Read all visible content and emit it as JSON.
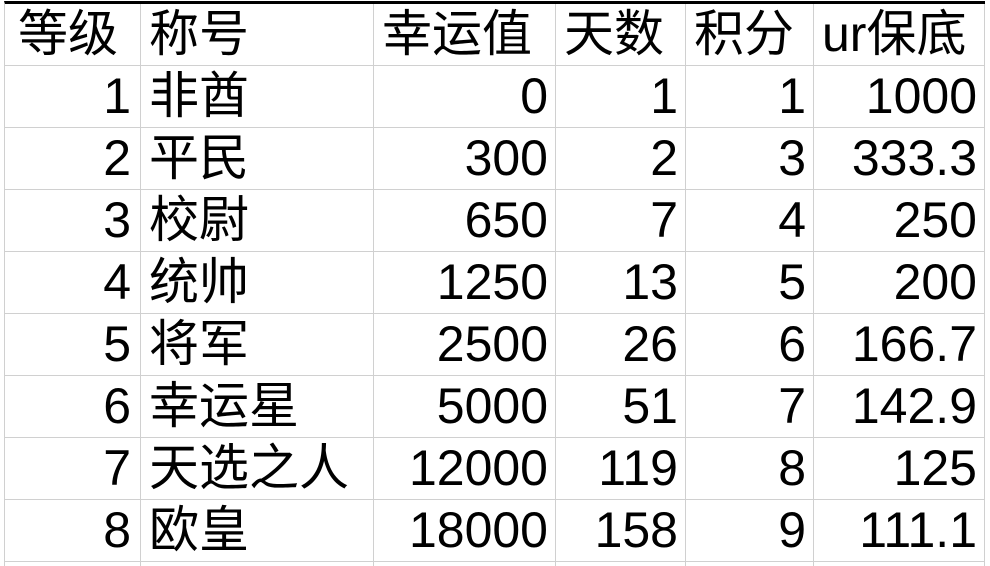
{
  "table": {
    "columns": [
      "等级",
      "称号",
      "幸运值",
      "天数",
      "积分",
      "ur保底"
    ],
    "rows": [
      [
        "1",
        "非酋",
        "0",
        "1",
        "1",
        "1000"
      ],
      [
        "2",
        "平民",
        "300",
        "2",
        "3",
        "333.3"
      ],
      [
        "3",
        "校尉",
        "650",
        "7",
        "4",
        "250"
      ],
      [
        "4",
        "统帅",
        "1250",
        "13",
        "5",
        "200"
      ],
      [
        "5",
        "将军",
        "2500",
        "26",
        "6",
        "166.7"
      ],
      [
        "6",
        "幸运星",
        "5000",
        "51",
        "7",
        "142.9"
      ],
      [
        "7",
        "天选之人",
        "12000",
        "119",
        "8",
        "125"
      ],
      [
        "8",
        "欧皇",
        "18000",
        "158",
        "9",
        "111.1"
      ]
    ]
  },
  "colors": {
    "gridline": "#d0d0d0",
    "top_border": "#000000",
    "text": "#000000",
    "background": "#ffffff"
  }
}
